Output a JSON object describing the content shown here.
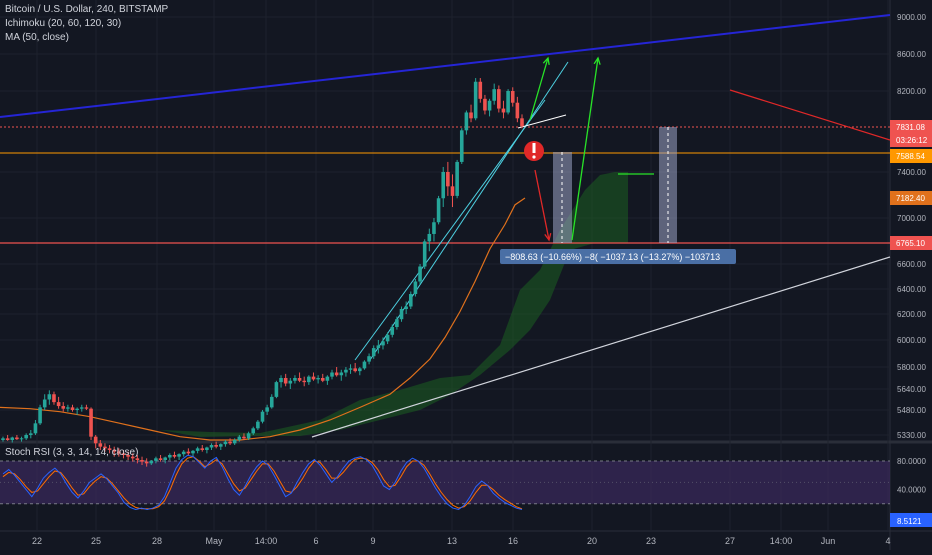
{
  "legend": {
    "symbol": "Bitcoin / U.S. Dollar, 240, BITSTAMP",
    "ichimoku": "Ichimoku (20, 60, 120, 30)",
    "ma": "MA (50, close)",
    "stoch": "Stoch RSI (3, 3, 14, 14, close)"
  },
  "colors": {
    "up": "#26a69a",
    "down": "#ef5350",
    "trend_blue": "#2525d6",
    "green_arrow": "#28e428",
    "red_arrow": "#e02828",
    "orange_line": "#ff9800",
    "ma_line": "#e0711c",
    "cloud": "#1b5e20",
    "rsi_bg": "#3b2a5c",
    "k_line": "#2962ff",
    "d_line": "#ff6d00"
  },
  "chart_data": [
    {
      "type": "candlestick",
      "y_axis_ticks": [
        "9000.00",
        "8600.00",
        "8200.00",
        "7400.00",
        "7000.00",
        "6600.00",
        "6400.00",
        "6200.00",
        "6000.00",
        "5800.00",
        "5640.00",
        "5480.00",
        "5330.00"
      ],
      "x_axis_ticks": [
        "22",
        "25",
        "28",
        "May",
        "14:00",
        "6",
        "9",
        "13",
        "16",
        "20",
        "23",
        "27",
        "14:00",
        "Jun",
        "4"
      ],
      "price_labels": [
        {
          "value": "7831.08",
          "color": "#ef5350"
        },
        {
          "value": "03:26:12",
          "color": "#ef5350"
        },
        {
          "value": "7588.54",
          "color": "#ff9800"
        },
        {
          "value": "7182.40",
          "color": "#e0711c"
        },
        {
          "value": "6765.10",
          "color": "#ef5350"
        }
      ],
      "levels": {
        "current": 7831.08,
        "orange": 7588.54,
        "support": 6765.1
      },
      "candles": [
        [
          5300,
          5320,
          5290,
          5310
        ],
        [
          5310,
          5330,
          5295,
          5300
        ],
        [
          5300,
          5320,
          5285,
          5315
        ],
        [
          5315,
          5330,
          5300,
          5305
        ],
        [
          5305,
          5320,
          5290,
          5310
        ],
        [
          5310,
          5340,
          5300,
          5330
        ],
        [
          5330,
          5360,
          5310,
          5340
        ],
        [
          5340,
          5420,
          5330,
          5400
        ],
        [
          5400,
          5520,
          5390,
          5500
        ],
        [
          5500,
          5600,
          5480,
          5560
        ],
        [
          5560,
          5630,
          5520,
          5600
        ],
        [
          5600,
          5620,
          5520,
          5540
        ],
        [
          5540,
          5580,
          5490,
          5510
        ],
        [
          5510,
          5540,
          5470,
          5490
        ],
        [
          5490,
          5520,
          5470,
          5500
        ],
        [
          5500,
          5520,
          5470,
          5480
        ],
        [
          5480,
          5500,
          5450,
          5490
        ],
        [
          5490,
          5520,
          5470,
          5500
        ],
        [
          5500,
          5520,
          5480,
          5490
        ],
        [
          5490,
          5500,
          5300,
          5320
        ],
        [
          5320,
          5330,
          5250,
          5280
        ],
        [
          5280,
          5300,
          5240,
          5260
        ],
        [
          5260,
          5280,
          5230,
          5250
        ],
        [
          5250,
          5270,
          5220,
          5240
        ],
        [
          5240,
          5260,
          5200,
          5230
        ],
        [
          5230,
          5250,
          5200,
          5220
        ],
        [
          5220,
          5240,
          5190,
          5210
        ],
        [
          5210,
          5230,
          5180,
          5200
        ],
        [
          5200,
          5220,
          5170,
          5190
        ],
        [
          5190,
          5210,
          5160,
          5180
        ],
        [
          5180,
          5200,
          5150,
          5170
        ],
        [
          5170,
          5190,
          5140,
          5160
        ],
        [
          5160,
          5180,
          5150,
          5175
        ],
        [
          5175,
          5200,
          5160,
          5190
        ],
        [
          5190,
          5210,
          5170,
          5180
        ],
        [
          5180,
          5200,
          5160,
          5195
        ],
        [
          5195,
          5220,
          5180,
          5210
        ],
        [
          5210,
          5230,
          5190,
          5200
        ],
        [
          5200,
          5220,
          5180,
          5215
        ],
        [
          5215,
          5240,
          5200,
          5230
        ],
        [
          5230,
          5250,
          5210,
          5220
        ],
        [
          5220,
          5240,
          5200,
          5235
        ],
        [
          5235,
          5260,
          5220,
          5250
        ],
        [
          5250,
          5270,
          5230,
          5240
        ],
        [
          5240,
          5260,
          5220,
          5255
        ],
        [
          5255,
          5280,
          5240,
          5270
        ],
        [
          5270,
          5290,
          5250,
          5260
        ],
        [
          5260,
          5280,
          5240,
          5275
        ],
        [
          5275,
          5300,
          5260,
          5290
        ],
        [
          5290,
          5310,
          5270,
          5280
        ],
        [
          5280,
          5310,
          5270,
          5300
        ],
        [
          5300,
          5330,
          5290,
          5320
        ],
        [
          5320,
          5340,
          5300,
          5310
        ],
        [
          5310,
          5350,
          5300,
          5340
        ],
        [
          5340,
          5380,
          5330,
          5370
        ],
        [
          5370,
          5420,
          5360,
          5410
        ],
        [
          5410,
          5480,
          5400,
          5470
        ],
        [
          5470,
          5520,
          5450,
          5500
        ],
        [
          5500,
          5600,
          5490,
          5580
        ],
        [
          5580,
          5700,
          5570,
          5690
        ],
        [
          5690,
          5740,
          5650,
          5720
        ],
        [
          5720,
          5750,
          5660,
          5680
        ],
        [
          5680,
          5720,
          5640,
          5700
        ],
        [
          5700,
          5740,
          5680,
          5720
        ],
        [
          5720,
          5760,
          5690,
          5700
        ],
        [
          5700,
          5730,
          5660,
          5690
        ],
        [
          5690,
          5740,
          5670,
          5730
        ],
        [
          5730,
          5760,
          5700,
          5710
        ],
        [
          5710,
          5740,
          5680,
          5720
        ],
        [
          5720,
          5750,
          5690,
          5700
        ],
        [
          5700,
          5740,
          5670,
          5730
        ],
        [
          5730,
          5780,
          5710,
          5760
        ],
        [
          5760,
          5800,
          5730,
          5740
        ],
        [
          5740,
          5780,
          5700,
          5760
        ],
        [
          5760,
          5800,
          5730,
          5780
        ],
        [
          5780,
          5820,
          5750,
          5790
        ],
        [
          5790,
          5830,
          5760,
          5770
        ],
        [
          5770,
          5800,
          5740,
          5790
        ],
        [
          5790,
          5850,
          5780,
          5840
        ],
        [
          5840,
          5900,
          5820,
          5880
        ],
        [
          5880,
          5960,
          5860,
          5940
        ],
        [
          5940,
          6000,
          5900,
          5960
        ],
        [
          5960,
          6020,
          5930,
          5990
        ],
        [
          5990,
          6060,
          5970,
          6040
        ],
        [
          6040,
          6120,
          6020,
          6100
        ],
        [
          6100,
          6180,
          6080,
          6160
        ],
        [
          6160,
          6260,
          6140,
          6240
        ],
        [
          6240,
          6300,
          6200,
          6260
        ],
        [
          6260,
          6380,
          6240,
          6360
        ],
        [
          6360,
          6480,
          6340,
          6460
        ],
        [
          6460,
          6600,
          6440,
          6580
        ],
        [
          6580,
          6800,
          6560,
          6780
        ],
        [
          6780,
          6900,
          6700,
          6850
        ],
        [
          6850,
          7000,
          6780,
          6960
        ],
        [
          6960,
          7200,
          6940,
          7180
        ],
        [
          7180,
          7450,
          7100,
          7400
        ],
        [
          7400,
          7500,
          7200,
          7280
        ],
        [
          7280,
          7380,
          7100,
          7200
        ],
        [
          7200,
          7520,
          7180,
          7500
        ],
        [
          7500,
          7820,
          7480,
          7800
        ],
        [
          7800,
          8000,
          7760,
          7980
        ],
        [
          7980,
          8060,
          7880,
          7920
        ],
        [
          7920,
          8340,
          7900,
          8300
        ],
        [
          8300,
          8340,
          8080,
          8120
        ],
        [
          8120,
          8160,
          7960,
          8000
        ],
        [
          8000,
          8120,
          7940,
          8100
        ],
        [
          8100,
          8280,
          8060,
          8220
        ],
        [
          8220,
          8260,
          7980,
          8020
        ],
        [
          8020,
          8100,
          7920,
          7980
        ],
        [
          7980,
          8220,
          7960,
          8200
        ],
        [
          8200,
          8240,
          8040,
          8080
        ],
        [
          8080,
          8140,
          7880,
          7920
        ],
        [
          7920,
          7960,
          7820,
          7840
        ]
      ],
      "ma50": [
        5500,
        5490,
        5470,
        5440,
        5400,
        5360,
        5320,
        5300,
        5300,
        5320,
        5360,
        5420,
        5500,
        5600,
        5720,
        5860,
        6020,
        6220,
        6460,
        6720,
        6940,
        7120,
        7182
      ],
      "annotations": {
        "measure_label": "−808.63 (−10.66%) −8( −1037.13 (−13.27%) −103713"
      }
    },
    {
      "type": "line",
      "name": "Stoch RSI",
      "y_axis_ticks": [
        "80.0000",
        "40.0000",
        "8.5121"
      ],
      "band": [
        20,
        80
      ],
      "current": "8.5121",
      "k": [
        62,
        68,
        60,
        50,
        40,
        30,
        42,
        56,
        64,
        70,
        62,
        48,
        36,
        28,
        38,
        50,
        56,
        62,
        55,
        45,
        35,
        22,
        15,
        12,
        14,
        12,
        14,
        18,
        30,
        50,
        70,
        82,
        88,
        86,
        78,
        70,
        80,
        85,
        72,
        55,
        40,
        32,
        45,
        60,
        72,
        80,
        74,
        60,
        45,
        30,
        35,
        50,
        64,
        76,
        82,
        74,
        62,
        50,
        58,
        70,
        80,
        84,
        86,
        82,
        74,
        60,
        45,
        40,
        50,
        66,
        78,
        84,
        80,
        70,
        56,
        42,
        30,
        20,
        14,
        12,
        18,
        30,
        44,
        52,
        46,
        35,
        28,
        22,
        18,
        14,
        12
      ],
      "d": [
        58,
        64,
        62,
        54,
        44,
        36,
        38,
        48,
        58,
        66,
        64,
        54,
        42,
        32,
        34,
        44,
        52,
        58,
        56,
        48,
        38,
        28,
        20,
        15,
        13,
        13,
        13,
        16,
        24,
        40,
        60,
        76,
        84,
        86,
        80,
        72,
        76,
        82,
        76,
        62,
        48,
        38,
        42,
        54,
        66,
        76,
        76,
        66,
        52,
        38,
        36,
        44,
        56,
        70,
        80,
        78,
        68,
        56,
        56,
        64,
        74,
        82,
        84,
        83,
        78,
        68,
        54,
        44,
        46,
        58,
        72,
        80,
        80,
        74,
        62,
        48,
        36,
        26,
        18,
        14,
        16,
        24,
        36,
        46,
        46,
        40,
        32,
        26,
        21,
        16,
        13
      ]
    }
  ]
}
